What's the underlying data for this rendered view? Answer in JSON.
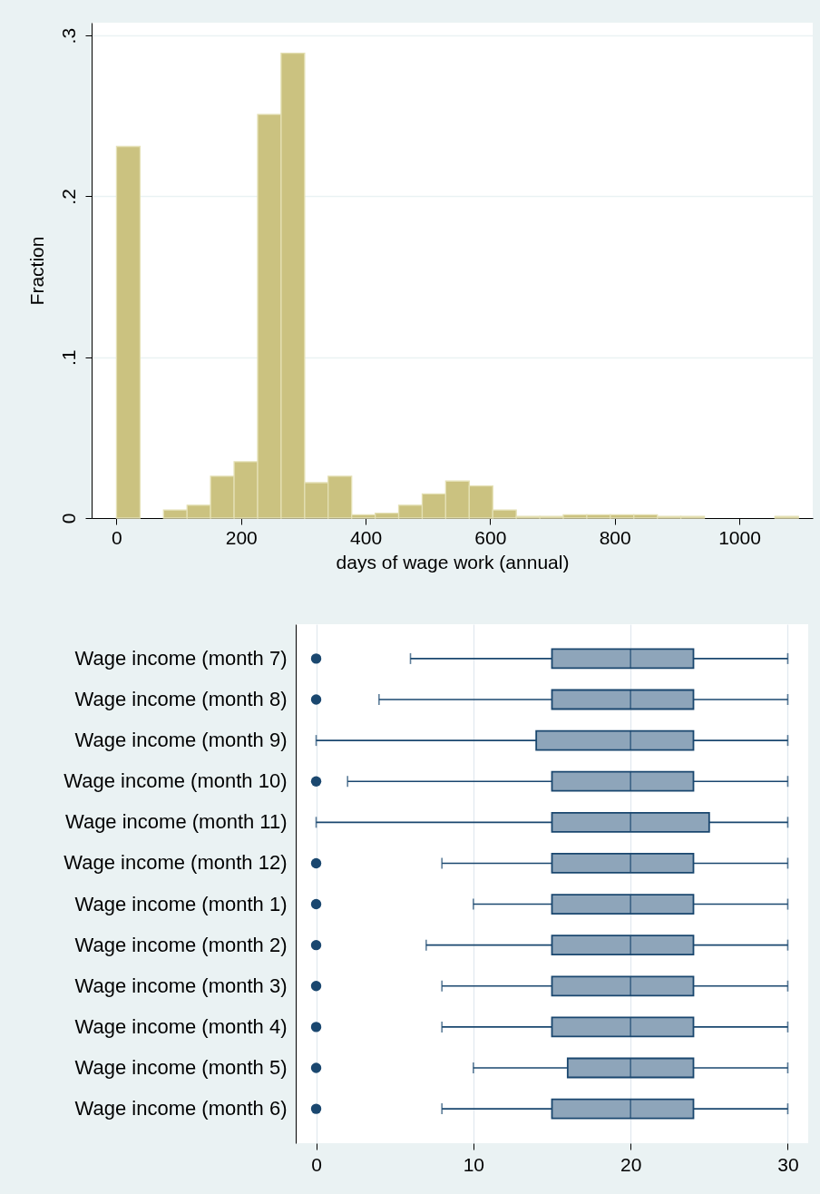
{
  "chart_data": [
    {
      "type": "histogram",
      "xlabel": "days of wage work (annual)",
      "ylabel": "Fraction",
      "color": "#cbc280",
      "bins": [
        0,
        37.8,
        75.5,
        113.3,
        151,
        188.8,
        226.6,
        264.3,
        302.1,
        339.8,
        377.6,
        415.4,
        453.1,
        490.9,
        528.6,
        566.4,
        604.2,
        641.9,
        679.7,
        717.4,
        755.2,
        793,
        830.7,
        868.5,
        906.2,
        944,
        981.8,
        1019.5,
        1057.3,
        1095
      ],
      "values": [
        0.231,
        0,
        0.005,
        0.008,
        0.026,
        0.035,
        0.251,
        0.289,
        0.022,
        0.026,
        0.002,
        0.003,
        0.008,
        0.015,
        0.023,
        0.02,
        0.005,
        0.001,
        0.001,
        0.002,
        0.002,
        0.002,
        0.002,
        0.001,
        0.001,
        0,
        0,
        0,
        0.001
      ],
      "xlim": [
        -40,
        1118
      ],
      "xticks": [
        0,
        200,
        400,
        600,
        800,
        1000
      ],
      "ylim": [
        0,
        0.308
      ],
      "yticks": [
        0,
        {
          "value": 0.1,
          "label": ".1"
        },
        {
          "value": 0.2,
          "label": ".2"
        },
        {
          "value": 0.3,
          "label": ".3"
        }
      ],
      "grid": "y"
    },
    {
      "type": "box",
      "orientation": "horizontal",
      "color": "#8ea5ba",
      "categories": [
        "Wage income (month 7)",
        "Wage income (month 8)",
        "Wage income (month 9)",
        "Wage income (month 10)",
        "Wage income (month 11)",
        "Wage income (month 12)",
        "Wage income (month 1)",
        "Wage income (month 2)",
        "Wage income (month 3)",
        "Wage income (month 4)",
        "Wage income (month 5)",
        "Wage income (month 6)"
      ],
      "boxes": [
        {
          "low": 6,
          "q1": 15,
          "median": 20,
          "q3": 24,
          "high": 30,
          "outliers": [
            0
          ]
        },
        {
          "low": 4,
          "q1": 15,
          "median": 20,
          "q3": 24,
          "high": 30,
          "outliers": [
            0
          ]
        },
        {
          "low": 0,
          "q1": 14,
          "median": 20,
          "q3": 24,
          "high": 30
        },
        {
          "low": 2,
          "q1": 15,
          "median": 20,
          "q3": 24,
          "high": 30,
          "outliers": [
            0
          ]
        },
        {
          "low": 0,
          "q1": 15,
          "median": 20,
          "q3": 25,
          "high": 30
        },
        {
          "low": 8,
          "q1": 15,
          "median": 20,
          "q3": 24,
          "high": 30,
          "outliers": [
            0
          ]
        },
        {
          "low": 10,
          "q1": 15,
          "median": 20,
          "q3": 24,
          "high": 30,
          "outliers": [
            0
          ]
        },
        {
          "low": 7,
          "q1": 15,
          "median": 20,
          "q3": 24,
          "high": 30,
          "outliers": [
            0
          ]
        },
        {
          "low": 8,
          "q1": 15,
          "median": 20,
          "q3": 24,
          "high": 30,
          "outliers": [
            0
          ]
        },
        {
          "low": 8,
          "q1": 15,
          "median": 20,
          "q3": 24,
          "high": 30,
          "outliers": [
            0
          ]
        },
        {
          "low": 10,
          "q1": 16,
          "median": 20,
          "q3": 24,
          "high": 30,
          "outliers": [
            0
          ]
        },
        {
          "low": 8,
          "q1": 15,
          "median": 20,
          "q3": 24,
          "high": 30,
          "outliers": [
            0
          ]
        }
      ],
      "xlim": [
        -1.3,
        31.3
      ],
      "xticks": [
        0,
        10,
        20,
        30
      ],
      "grid": "x"
    }
  ]
}
